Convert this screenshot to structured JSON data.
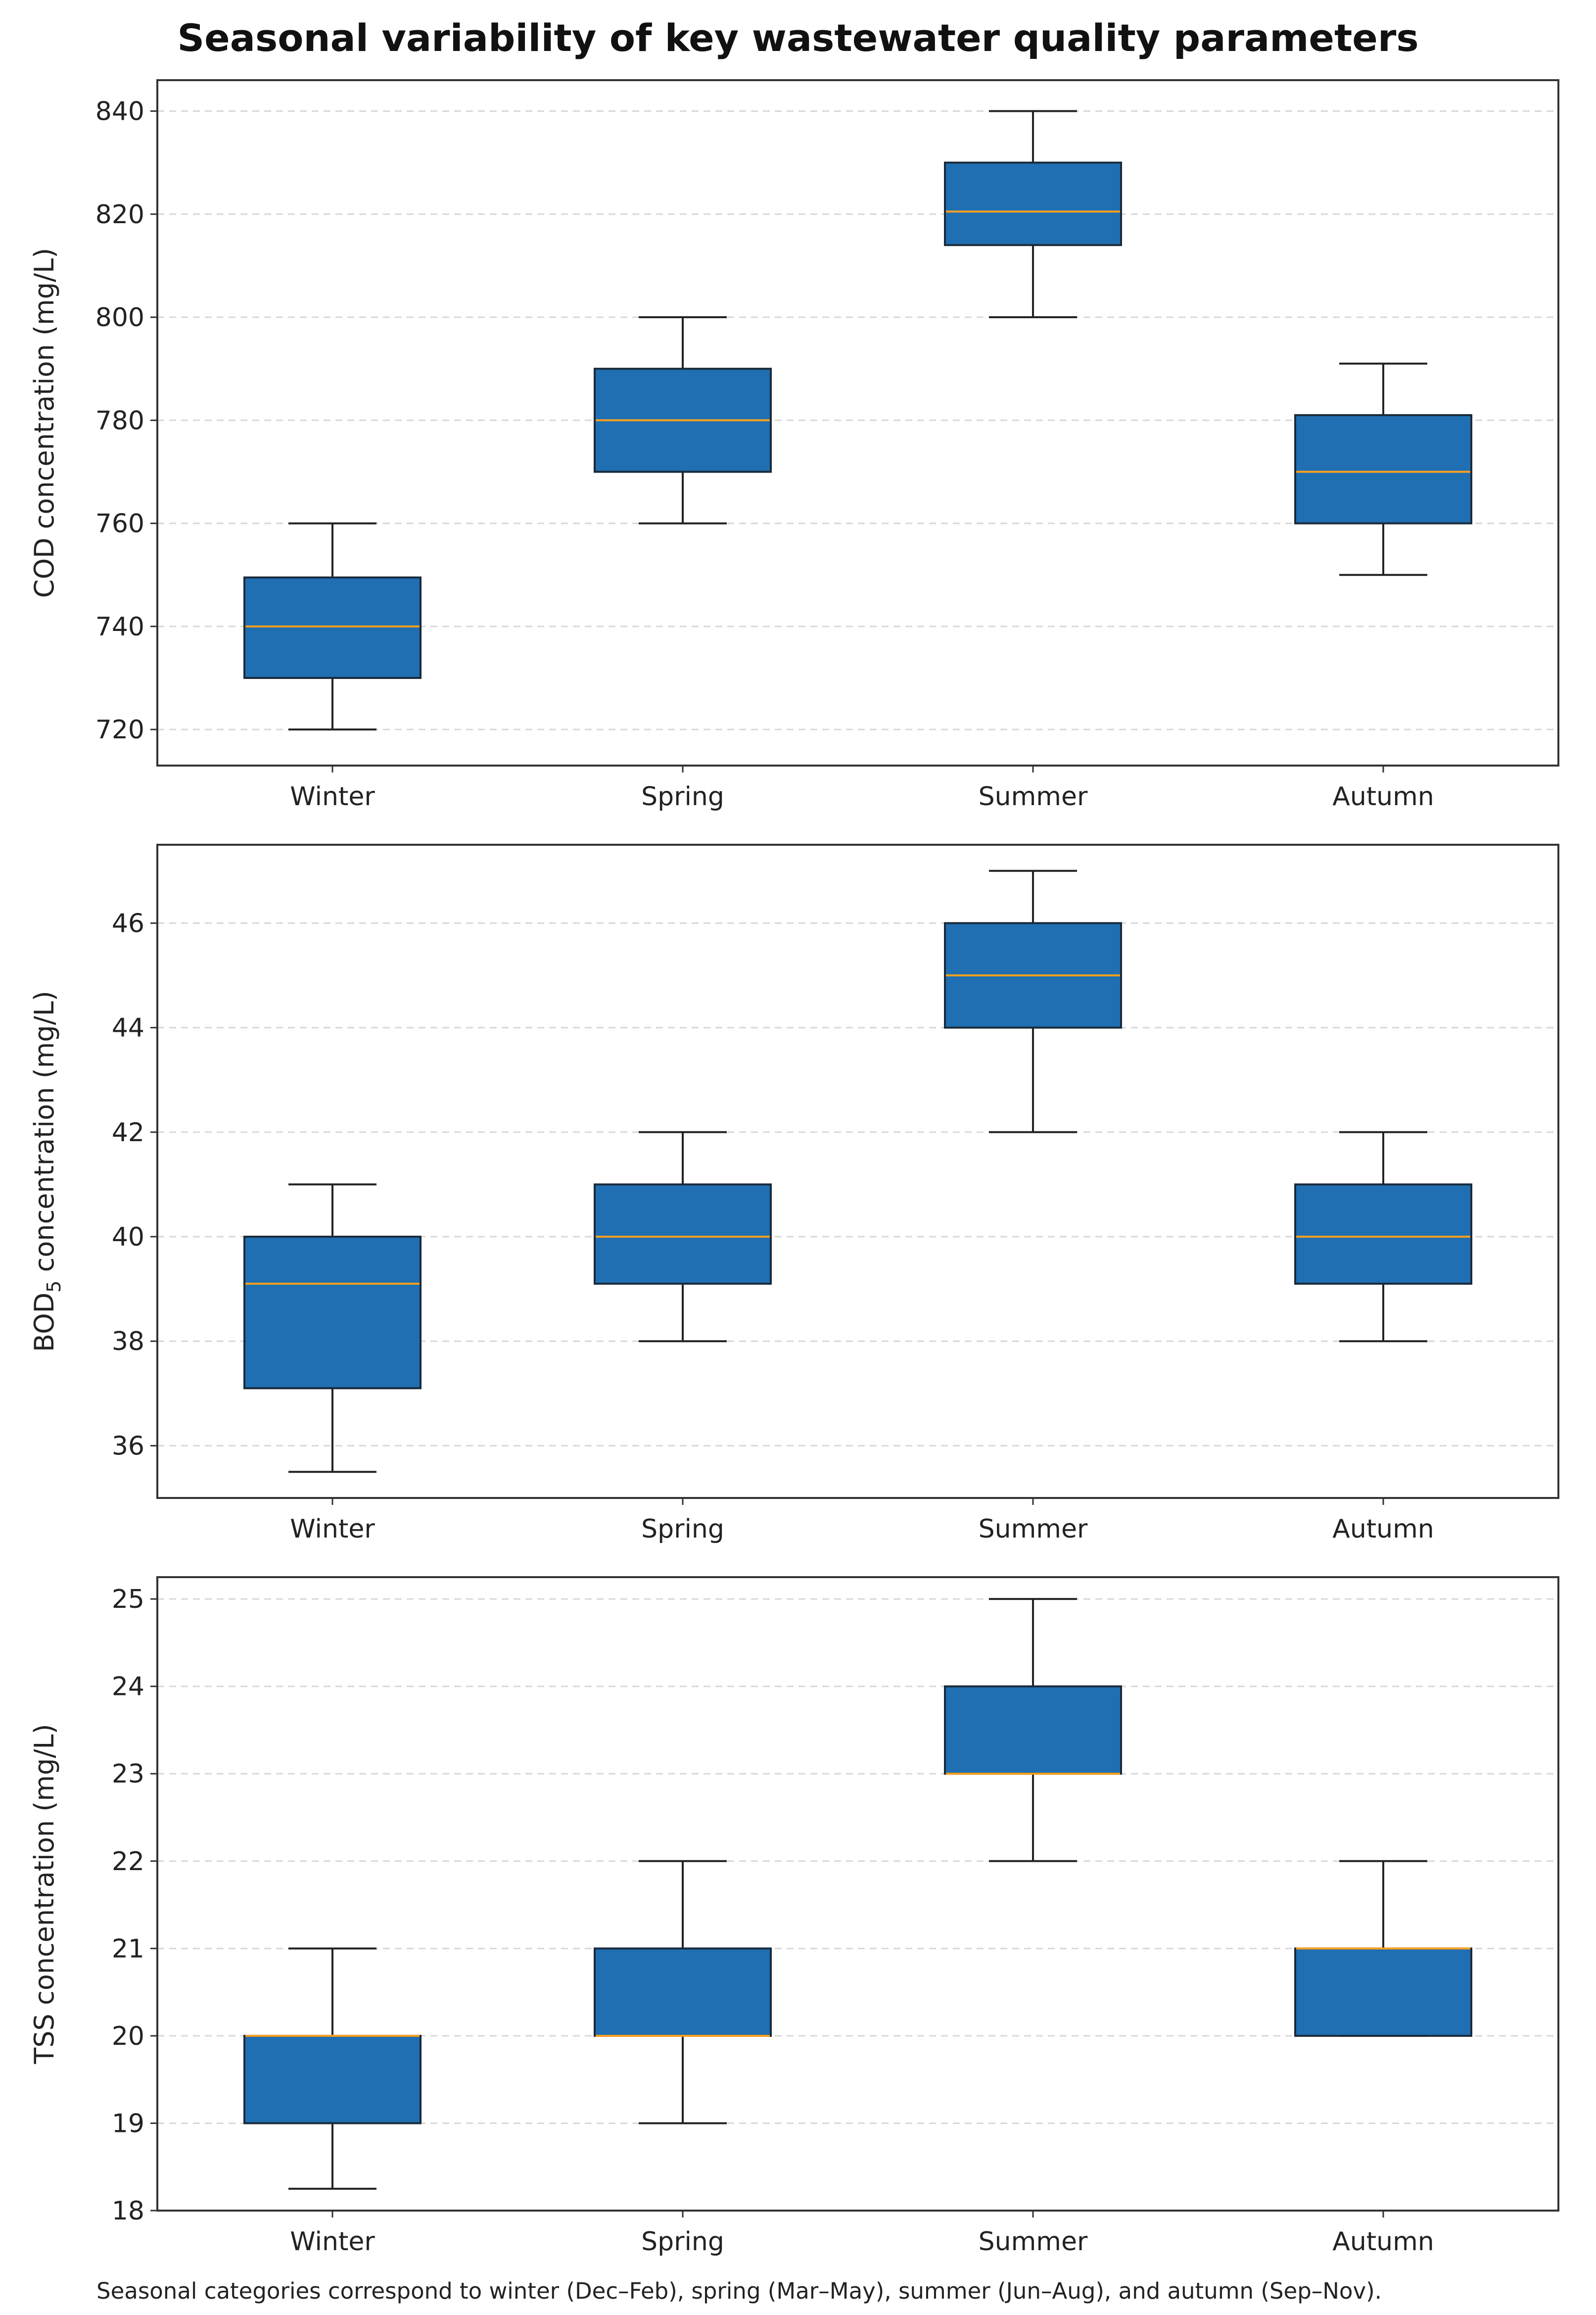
{
  "title": "Seasonal variability of key wastewater quality parameters",
  "caption": "Seasonal categories correspond to winter (Dec–Feb), spring (Mar–May), summer (Jun–Aug), and autumn (Sep–Nov).",
  "colors": {
    "box_fill": "#1f6fb2",
    "median": "#ff9f1c",
    "grid": "#d8d8d8",
    "axis": "#333333"
  },
  "chart_data": [
    {
      "type": "box",
      "ylabel": "COD concentration (mg/L)",
      "ylabel_sub": "",
      "ylabel_rest": "",
      "categories": [
        "Winter",
        "Spring",
        "Summer",
        "Autumn"
      ],
      "ylim": [
        713,
        846
      ],
      "yticks": [
        "720",
        "740",
        "760",
        "780",
        "800",
        "820",
        "840"
      ],
      "grid": true,
      "boxes": [
        {
          "whislo": 720,
          "q1": 730,
          "med": 740,
          "q3": 749.5,
          "whishi": 760
        },
        {
          "whislo": 760,
          "q1": 770,
          "med": 780,
          "q3": 790,
          "whishi": 800
        },
        {
          "whislo": 800,
          "q1": 814,
          "med": 820.5,
          "q3": 830,
          "whishi": 840
        },
        {
          "whislo": 750,
          "q1": 760,
          "med": 770,
          "q3": 781,
          "whishi": 791
        }
      ]
    },
    {
      "type": "box",
      "ylabel": "BOD",
      "ylabel_sub": "5",
      "ylabel_rest": " concentration (mg/L)",
      "categories": [
        "Winter",
        "Spring",
        "Summer",
        "Autumn"
      ],
      "ylim": [
        35,
        47.5
      ],
      "yticks": [
        "36",
        "38",
        "40",
        "42",
        "44",
        "46"
      ],
      "grid": true,
      "boxes": [
        {
          "whislo": 35.5,
          "q1": 37.1,
          "med": 39.1,
          "q3": 40.0,
          "whishi": 41
        },
        {
          "whislo": 38,
          "q1": 39.1,
          "med": 40,
          "q3": 41,
          "whishi": 42
        },
        {
          "whislo": 42,
          "q1": 44,
          "med": 45,
          "q3": 46,
          "whishi": 47
        },
        {
          "whislo": 38,
          "q1": 39.1,
          "med": 40,
          "q3": 41,
          "whishi": 42
        }
      ]
    },
    {
      "type": "box",
      "ylabel": "TSS concentration (mg/L)",
      "ylabel_sub": "",
      "ylabel_rest": "",
      "categories": [
        "Winter",
        "Spring",
        "Summer",
        "Autumn"
      ],
      "ylim": [
        18,
        25.25
      ],
      "yticks": [
        "18",
        "19",
        "20",
        "21",
        "22",
        "23",
        "24",
        "25"
      ],
      "grid": true,
      "boxes": [
        {
          "whislo": 18.25,
          "q1": 19,
          "med": 20,
          "q3": 20,
          "whishi": 21
        },
        {
          "whislo": 19,
          "q1": 20,
          "med": 20,
          "q3": 21,
          "whishi": 22
        },
        {
          "whislo": 22,
          "q1": 23,
          "med": 23,
          "q3": 24,
          "whishi": 25
        },
        {
          "whislo": 20,
          "q1": 20,
          "med": 21,
          "q3": 21,
          "whishi": 22
        }
      ]
    }
  ]
}
